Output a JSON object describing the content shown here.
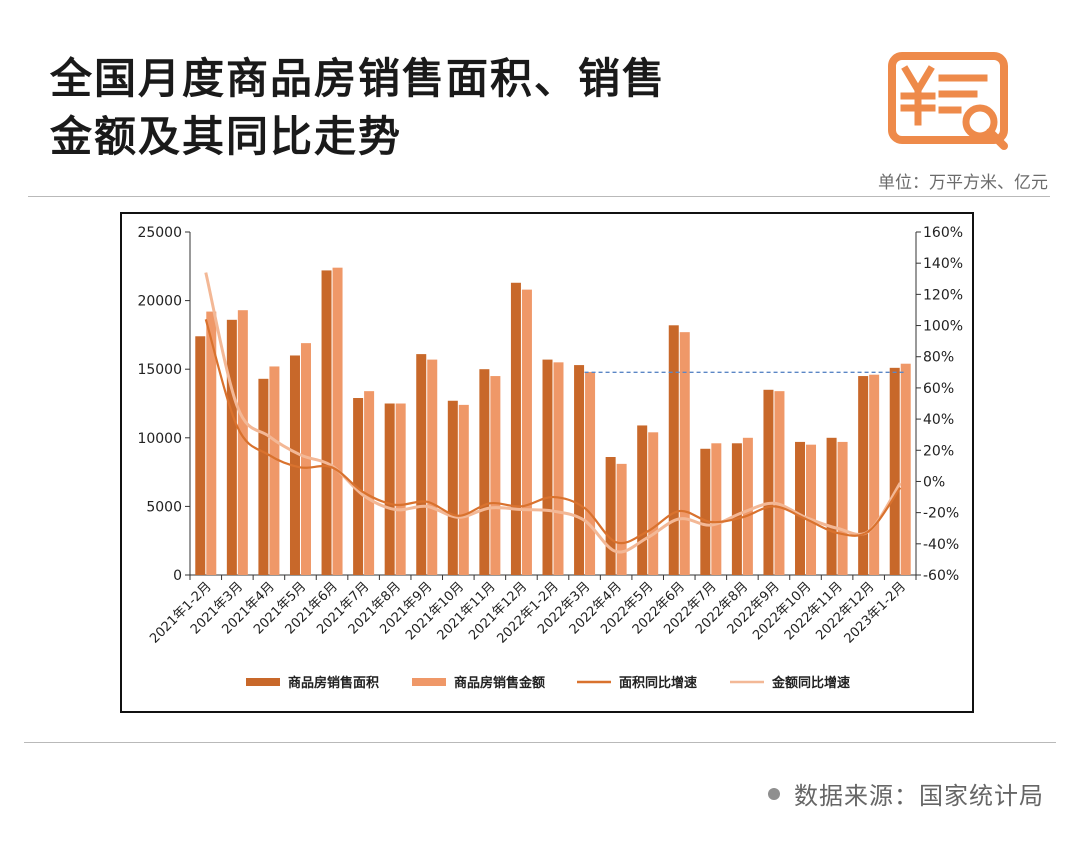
{
  "header": {
    "title_line1": "全国月度商品房销售面积、销售",
    "title_line2": "金额及其同比走势",
    "unit": "单位：万平方米、亿元",
    "logo_icon": "yuan-receipt-search-icon"
  },
  "footer": {
    "source": "数据来源：国家统计局"
  },
  "colors": {
    "area_bar": "#c8682a",
    "amount_bar": "#ef9868",
    "area_line": "#d9722e",
    "amount_line": "#f3b896",
    "reference_line": "#5b86c5",
    "logo": "#ee8a4a"
  },
  "chart_data": {
    "type": "bar",
    "categories": [
      "2021年1-2月",
      "2021年3月",
      "2021年4月",
      "2021年5月",
      "2021年6月",
      "2021年7月",
      "2021年8月",
      "2021年9月",
      "2021年10月",
      "2021年11月",
      "2021年12月",
      "2022年1-2月",
      "2022年3月",
      "2022年4月",
      "2022年5月",
      "2022年6月",
      "2022年7月",
      "2022年8月",
      "2022年9月",
      "2022年10月",
      "2022年11月",
      "2022年12月",
      "2023年1-2月"
    ],
    "series": [
      {
        "name": "商品房销售面积",
        "kind": "bar",
        "axis": "left",
        "values": [
          17400,
          18600,
          14300,
          16000,
          22200,
          12900,
          12500,
          16100,
          12700,
          15000,
          21300,
          15700,
          15300,
          8600,
          10900,
          18200,
          9200,
          9600,
          13500,
          9700,
          10000,
          14500,
          15100
        ]
      },
      {
        "name": "商品房销售金额",
        "kind": "bar",
        "axis": "left",
        "values": [
          19200,
          19300,
          15200,
          16900,
          22400,
          13400,
          12500,
          15700,
          12400,
          14500,
          20800,
          15500,
          14800,
          8100,
          10400,
          17700,
          9600,
          10000,
          13400,
          9500,
          9700,
          14600,
          15400
        ]
      },
      {
        "name": "面积同比增速",
        "kind": "line",
        "axis": "right",
        "values": [
          104,
          35,
          17,
          9,
          9,
          -7,
          -15,
          -13,
          -22,
          -14,
          -16,
          -10,
          -17,
          -39,
          -32,
          -19,
          -26,
          -23,
          -16,
          -24,
          -33,
          -32,
          -4
        ]
      },
      {
        "name": "金额同比增速",
        "kind": "line",
        "axis": "right",
        "values": [
          134,
          48,
          29,
          17,
          10,
          -9,
          -18,
          -16,
          -23,
          -17,
          -18,
          -19,
          -25,
          -45,
          -36,
          -24,
          -28,
          -20,
          -14,
          -23,
          -30,
          -32,
          -1
        ]
      }
    ],
    "reference_line": {
      "axis": "right",
      "value": 70,
      "from_category": "2022年3月",
      "to_category": "2023年1-2月"
    },
    "y_left": {
      "min": 0,
      "max": 25000,
      "ticks": [
        0,
        5000,
        10000,
        15000,
        20000,
        25000
      ]
    },
    "y_right": {
      "min": -60,
      "max": 160,
      "ticks": [
        -60,
        -40,
        -20,
        0,
        20,
        40,
        60,
        80,
        100,
        120,
        140,
        160
      ],
      "suffix": "%"
    },
    "title": "",
    "xlabel": "",
    "ylabel": "",
    "legend_position": "bottom",
    "grid": false
  }
}
